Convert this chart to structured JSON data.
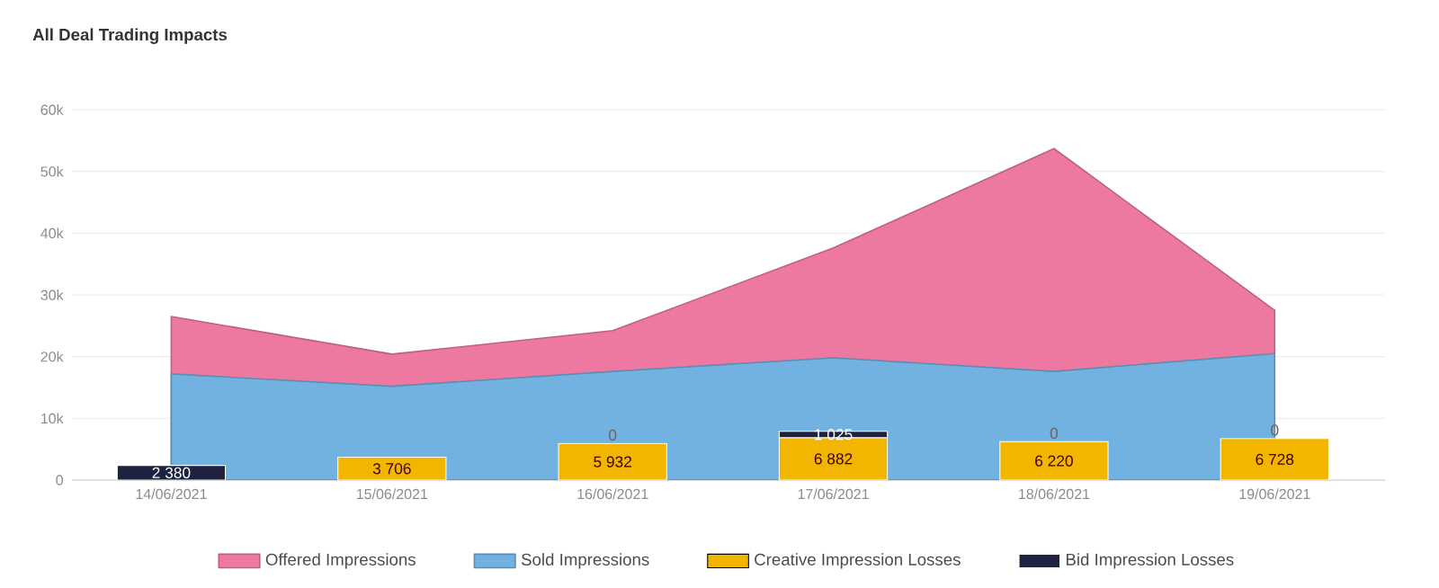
{
  "chart_data": {
    "type": "bar",
    "title": "All Deal Trading Impacts",
    "categories": [
      "14/06/2021",
      "15/06/2021",
      "16/06/2021",
      "17/06/2021",
      "18/06/2021",
      "19/06/2021"
    ],
    "series": [
      {
        "name": "Offered Impressions",
        "type": "area",
        "color": "#ee79a0",
        "values": [
          26500,
          20400,
          24200,
          37600,
          53700,
          27500
        ]
      },
      {
        "name": "Sold Impressions",
        "type": "area",
        "color": "#72b2e0",
        "values": [
          17200,
          15200,
          17600,
          19800,
          17600,
          20500
        ]
      },
      {
        "name": "Creative Impression Losses",
        "color": "#f2b600",
        "values": [
          0,
          3706,
          5932,
          6882,
          6220,
          6728
        ],
        "value_labels": [
          null,
          "3 706",
          "5 932",
          "6 882",
          "6 220",
          "6 728"
        ]
      },
      {
        "name": "Bid Impression Losses",
        "color": "#1e2140",
        "values": [
          2380,
          null,
          0,
          1025,
          0,
          0
        ],
        "base": [
          0,
          null,
          null,
          6882,
          null,
          null
        ],
        "value_labels": [
          "2 380",
          null,
          "0",
          "1 025",
          "0",
          "0"
        ]
      }
    ],
    "ylim": [
      0,
      60000
    ],
    "yticks": [
      0,
      {
        "value": 10000,
        "label": "10k"
      },
      {
        "value": 20000,
        "label": "20k"
      },
      {
        "value": 30000,
        "label": "30k"
      },
      {
        "value": 40000,
        "label": "40k"
      },
      {
        "value": 50000,
        "label": "50k"
      },
      {
        "value": 60000,
        "label": "60k"
      }
    ],
    "grid": "y",
    "legend": "bottom"
  }
}
